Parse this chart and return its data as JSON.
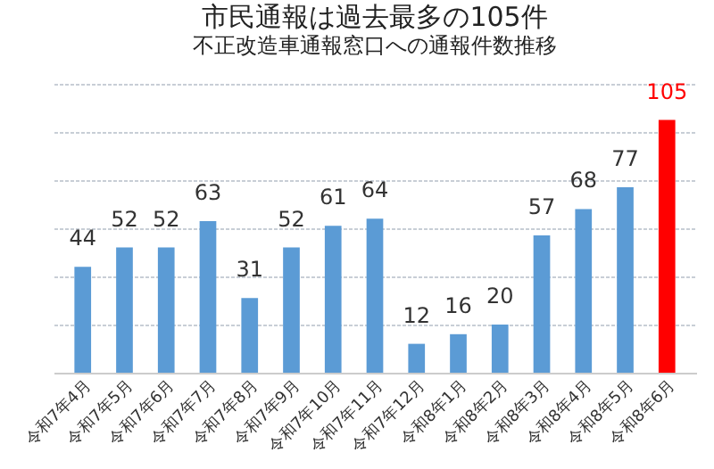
{
  "chart_data": {
    "type": "bar",
    "title": "市民通報は過去最多の105件",
    "subtitle": "不正改造車通報窓口への通報件数推移",
    "categories": [
      "令和7年4月",
      "令和7年5月",
      "令和7年6月",
      "令和7年7月",
      "令和7年8月",
      "令和7年9月",
      "令和7年10月",
      "令和7年11月",
      "令和7年12月",
      "令和8年1月",
      "令和8年2月",
      "令和8年3月",
      "令和8年4月",
      "令和8年5月",
      "令和8年6月"
    ],
    "values": [
      44,
      52,
      52,
      63,
      31,
      52,
      61,
      64,
      12,
      16,
      20,
      57,
      68,
      77,
      105
    ],
    "colors": [
      "#5b9bd5",
      "#5b9bd5",
      "#5b9bd5",
      "#5b9bd5",
      "#5b9bd5",
      "#5b9bd5",
      "#5b9bd5",
      "#5b9bd5",
      "#5b9bd5",
      "#5b9bd5",
      "#5b9bd5",
      "#5b9bd5",
      "#5b9bd5",
      "#5b9bd5",
      "#ff0000"
    ],
    "ylim": [
      0,
      120
    ],
    "yticks": [
      {
        "value": 0,
        "label": null
      },
      {
        "value": 20,
        "label": null
      },
      {
        "value": 40,
        "label": null
      },
      {
        "value": 60,
        "label": null
      },
      {
        "value": 80,
        "label": null
      },
      {
        "value": 100,
        "label": null
      },
      {
        "value": 120,
        "label": null
      }
    ],
    "tick_labels": "x",
    "grid": "y",
    "data_labels": true
  }
}
